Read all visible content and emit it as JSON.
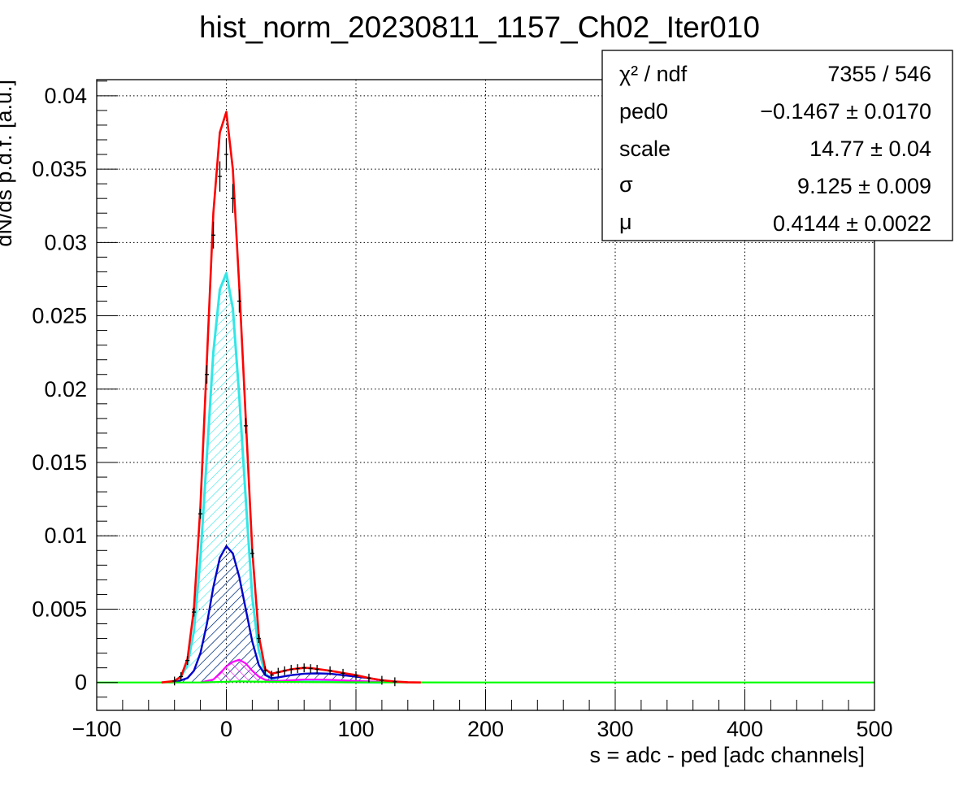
{
  "chart_data": {
    "type": "line",
    "title": "hist_norm_20230811_1157_Ch02_Iter010",
    "xlabel": "s = adc - ped [adc channels]",
    "ylabel": "dN/ds p.d.f. [a.u.]",
    "xlim": [
      -100,
      500
    ],
    "ylim": [
      -0.0019,
      0.0411
    ],
    "grid": true,
    "x_ticks": [
      "−100",
      "0",
      "100",
      "200",
      "300",
      "400",
      "500"
    ],
    "x_tick_values": [
      -100,
      0,
      100,
      200,
      300,
      400,
      500
    ],
    "y_ticks": [
      "0",
      "0.005",
      "0.01",
      "0.015",
      "0.02",
      "0.025",
      "0.03",
      "0.035",
      "0.04"
    ],
    "y_tick_values": [
      0,
      0.005,
      0.01,
      0.015,
      0.02,
      0.025,
      0.03,
      0.035,
      0.04
    ],
    "colors": {
      "data": "#000000",
      "total_fit": "#ff0000",
      "pedestal": "#33e6e6",
      "one_pe": "#0000cc",
      "two_pe": "#ff00ff",
      "three_pe": "#00ff00"
    },
    "series": [
      {
        "key": "total_fit",
        "x": [
          -50,
          -40,
          -35,
          -30,
          -25,
          -20,
          -15,
          -10,
          -5,
          0,
          5,
          10,
          15,
          20,
          25,
          30,
          35,
          40,
          45,
          50,
          55,
          60,
          65,
          70,
          80,
          90,
          100,
          110,
          120,
          130,
          140,
          150
        ],
        "values": [
          0,
          0.0001,
          0.0004,
          0.0016,
          0.005,
          0.012,
          0.022,
          0.032,
          0.0375,
          0.0389,
          0.035,
          0.027,
          0.018,
          0.009,
          0.0032,
          0.0009,
          0.0006,
          0.0007,
          0.0008,
          0.0009,
          0.00095,
          0.001,
          0.00098,
          0.00092,
          0.0008,
          0.00065,
          0.0005,
          0.0003,
          0.00015,
          6e-05,
          2e-05,
          0
        ]
      },
      {
        "key": "data",
        "x": [
          -40,
          -35,
          -30,
          -25,
          -20,
          -15,
          -10,
          -5,
          0,
          5,
          10,
          15,
          20,
          25,
          30,
          35,
          40,
          45,
          50,
          55,
          60,
          65,
          70,
          80,
          90,
          100,
          110,
          120,
          130
        ],
        "values": [
          0.0001,
          0.0004,
          0.0015,
          0.0048,
          0.0115,
          0.021,
          0.0305,
          0.0345,
          0.036,
          0.033,
          0.026,
          0.0175,
          0.0088,
          0.003,
          0.0008,
          0.0005,
          0.0007,
          0.0008,
          0.0009,
          0.00095,
          0.001,
          0.00095,
          0.0009,
          0.0008,
          0.00063,
          0.00048,
          0.0003,
          0.00015,
          5e-05
        ]
      },
      {
        "key": "pedestal",
        "x": [
          -40,
          -35,
          -30,
          -25,
          -20,
          -15,
          -10,
          -5,
          0,
          5,
          10,
          15,
          20,
          25,
          30,
          35,
          40,
          50,
          60,
          80,
          100,
          120
        ],
        "values": [
          0.0001,
          0.0004,
          0.0012,
          0.0035,
          0.0085,
          0.0155,
          0.0225,
          0.0268,
          0.0279,
          0.0255,
          0.0195,
          0.0125,
          0.0058,
          0.0022,
          0.0006,
          0.0002,
          0.0001,
          8e-05,
          6e-05,
          4e-05,
          2e-05,
          0
        ]
      },
      {
        "key": "one_pe",
        "x": [
          -40,
          -30,
          -25,
          -20,
          -15,
          -10,
          -5,
          0,
          5,
          10,
          15,
          20,
          25,
          30,
          35,
          40,
          50,
          60,
          70,
          80,
          90,
          100,
          110,
          120,
          130
        ],
        "values": [
          0,
          0.0003,
          0.0008,
          0.002,
          0.004,
          0.0065,
          0.0085,
          0.0093,
          0.0088,
          0.0072,
          0.005,
          0.0028,
          0.0012,
          0.0005,
          0.0003,
          0.00035,
          0.0005,
          0.0006,
          0.00062,
          0.0006,
          0.0005,
          0.0004,
          0.0003,
          0.00015,
          5e-05
        ]
      },
      {
        "key": "two_pe",
        "x": [
          -20,
          -10,
          -5,
          0,
          5,
          10,
          15,
          20,
          25,
          30,
          35,
          40,
          50,
          60,
          70,
          80,
          100,
          120,
          140
        ],
        "values": [
          0,
          0.0002,
          0.0006,
          0.0011,
          0.0014,
          0.00155,
          0.0013,
          0.0008,
          0.0004,
          0.00018,
          0.0001,
          0.0001,
          0.00015,
          0.0002,
          0.0002,
          0.00018,
          0.0001,
          4e-05,
          0
        ]
      },
      {
        "key": "three_pe",
        "x": [
          -100,
          -20,
          0,
          10,
          20,
          40,
          60,
          80,
          100,
          200,
          300,
          400,
          500
        ],
        "values": [
          0,
          0,
          5e-05,
          8e-05,
          6e-05,
          4e-05,
          3e-05,
          2e-05,
          1e-05,
          0,
          0,
          0,
          0
        ]
      }
    ]
  },
  "stats_box": {
    "chi2_label": "χ² / ndf",
    "chi2_value": "7355 / 546",
    "ped0_label": "ped0",
    "ped0_value": "−0.1467 ± 0.0170",
    "scale_label": "scale",
    "scale_value": "14.77 ± 0.04",
    "sigma_label": "σ",
    "sigma_value": "9.125 ± 0.009",
    "mu_label": "μ",
    "mu_value": "0.4144 ± 0.0022"
  }
}
